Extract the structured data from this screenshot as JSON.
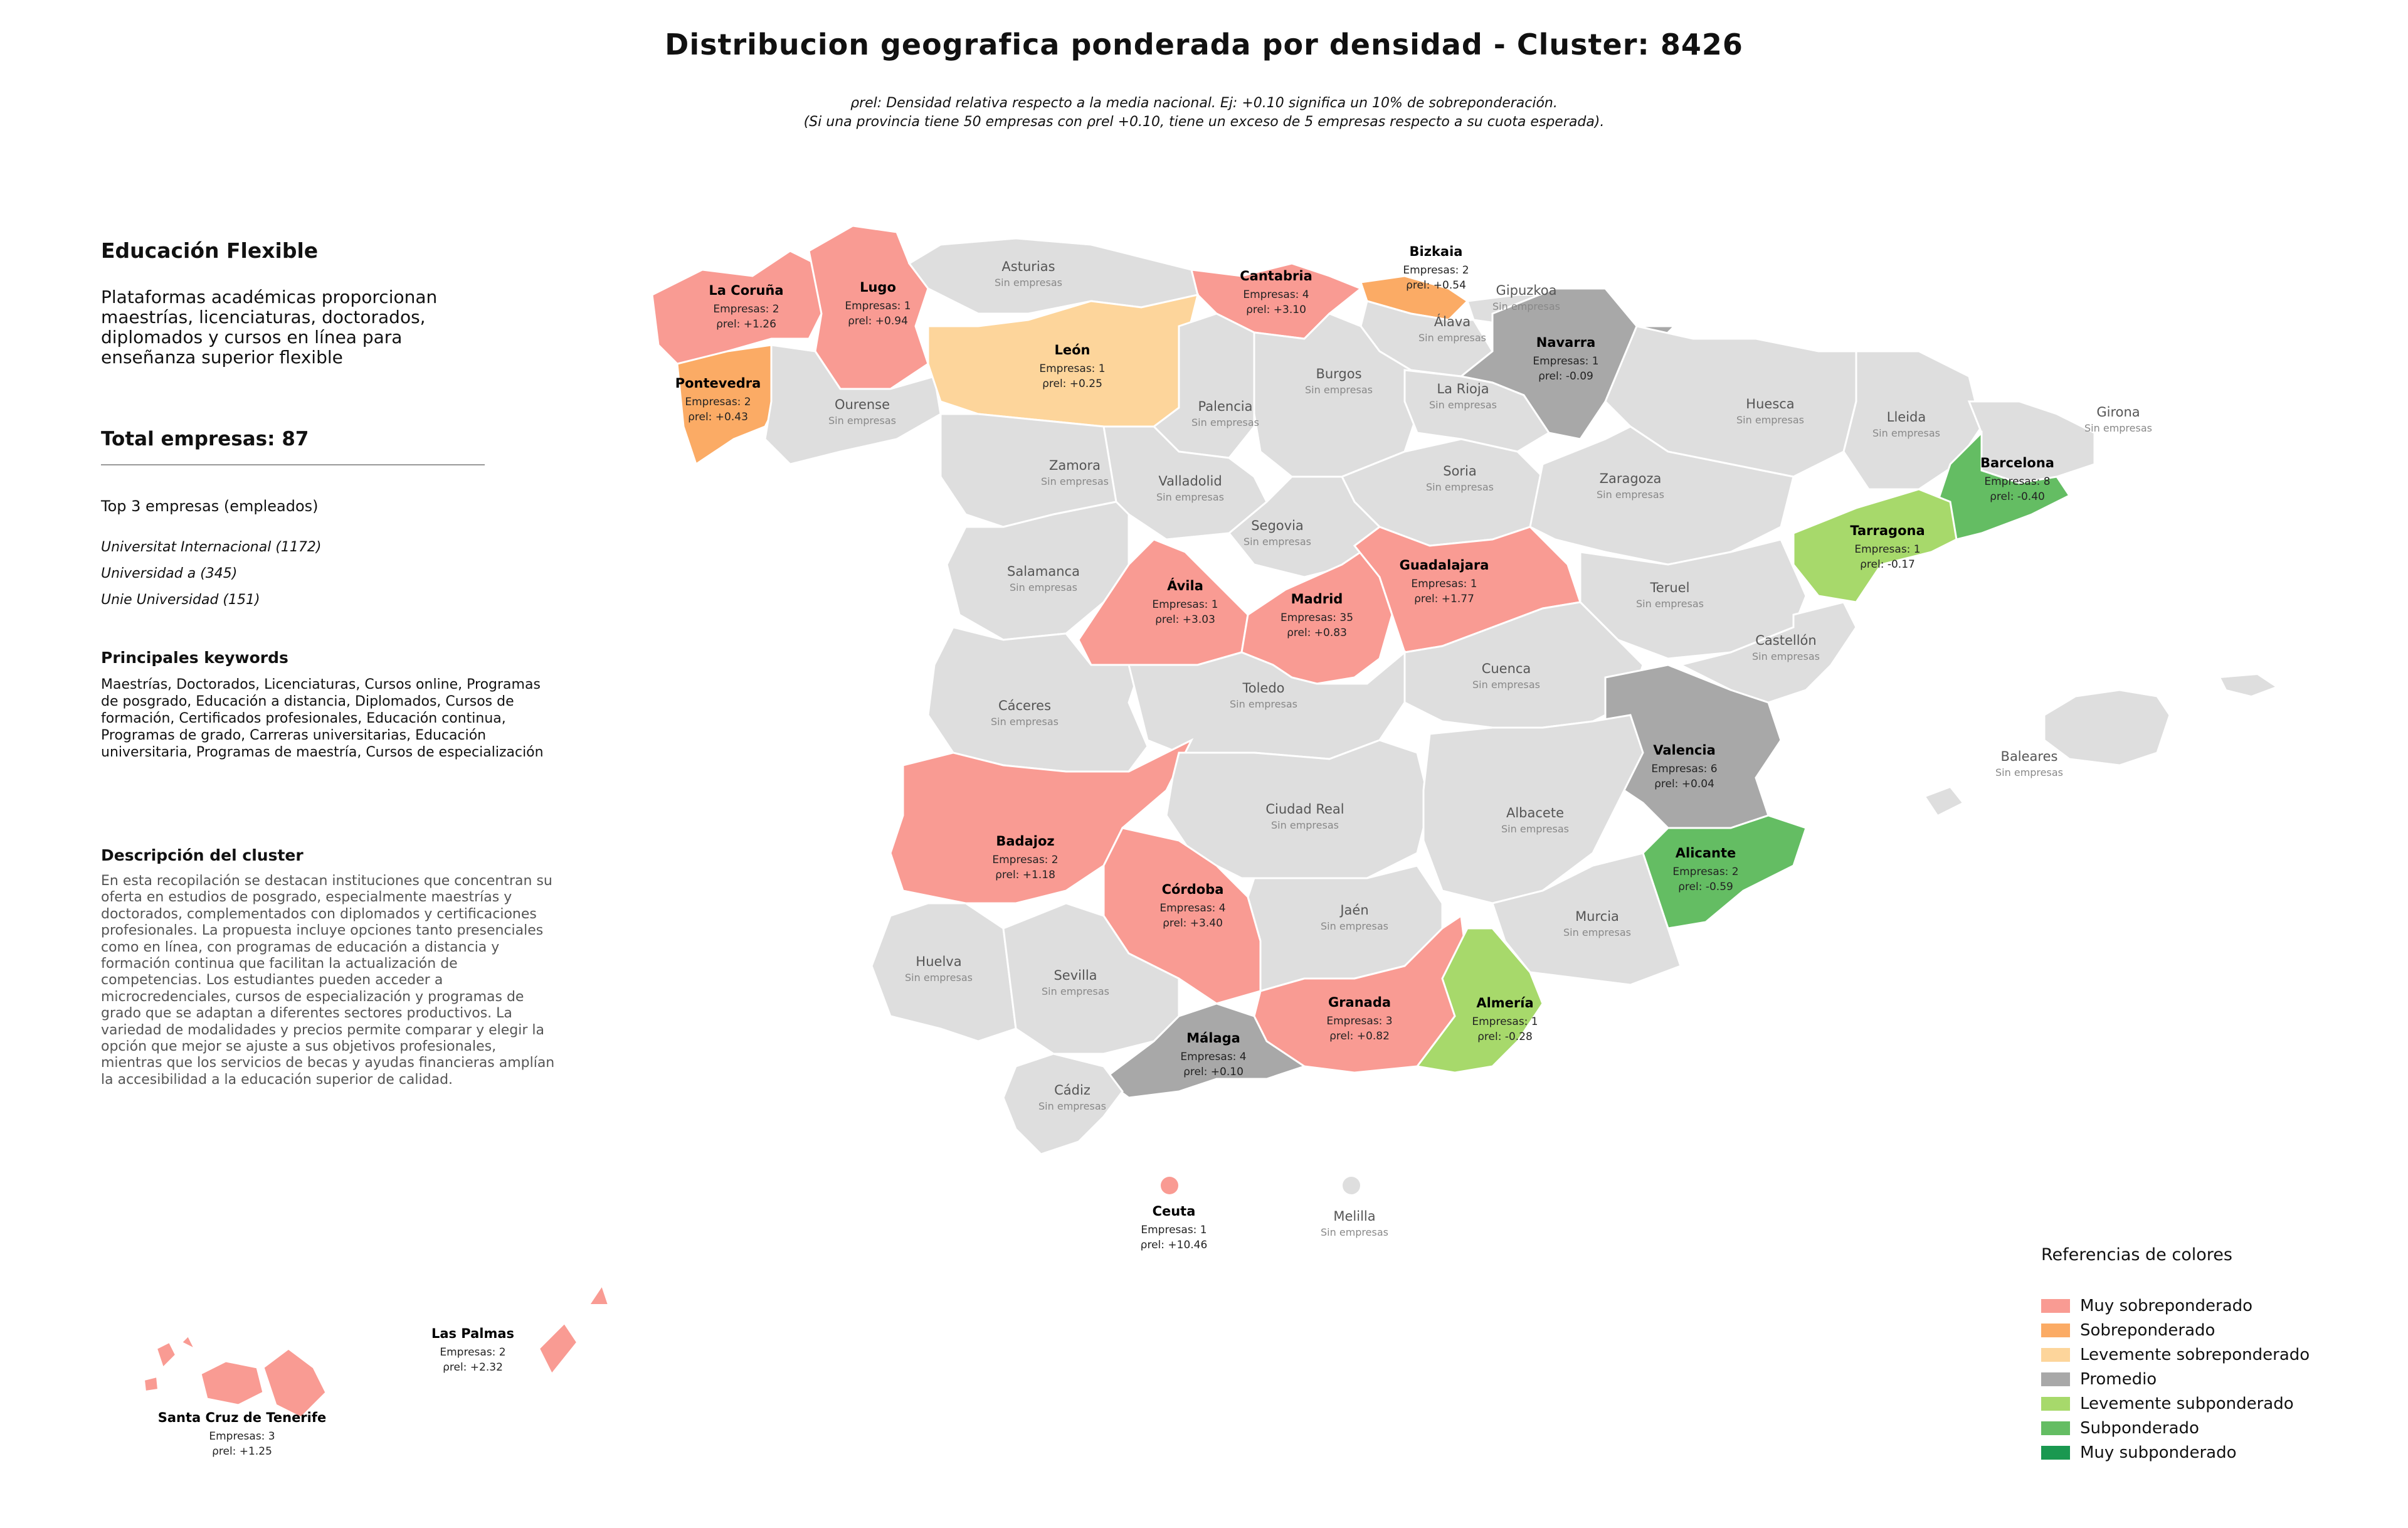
{
  "title": "Distribucion geografica ponderada por densidad - Cluster: 8426",
  "subtitle_line1": "ρrel: Densidad relativa respecto a la media nacional. Ej: +0.10 significa un 10% de sobreponderación.",
  "subtitle_line2": "(Si una provincia tiene 50 empresas con ρrel +0.10, tiene un exceso de 5 empresas respecto a su cuota esperada).",
  "panel": {
    "title": "Educación Flexible",
    "description": "Plataformas académicas proporcionan maestrías, licenciaturas, doctorados, diplomados y cursos en línea para enseñanza superior flexible",
    "total": "Total empresas: 87",
    "top3_title": "Top 3 empresas (empleados)",
    "top3": [
      "Universitat Internacional (1172)",
      "Universidad a (345)",
      "Unie Universidad (151)"
    ],
    "keywords_title": "Principales keywords",
    "keywords": "Maestrías, Doctorados, Licenciaturas, Cursos online, Programas de posgrado, Educación a distancia, Diplomados, Cursos de formación, Certificados profesionales, Educación continua, Programas de grado, Carreras universitarias, Educación universitaria, Programas de maestría, Cursos de especialización",
    "cluster_desc_title": "Descripción del cluster",
    "cluster_desc": "En esta recopilación se destacan instituciones que concentran su oferta en estudios de posgrado, especialmente maestrías y doctorados, complementados con diplomados y certificaciones profesionales. La propuesta incluye opciones tanto presenciales como en línea, con programas de educación a distancia y formación continua que facilitan la actualización de competencias. Los estudiantes pueden acceder a microcredenciales, cursos de especialización y programas de grado que se adaptan a diferentes sectores productivos. La variedad de modalidades y precios permite comparar y elegir la opción que mejor se ajuste a sus objetivos profesionales, mientras que los servicios de becas y ayudas financieras amplían la accesibilidad a la educación superior de calidad."
  },
  "no_companies_label": "Sin empresas",
  "companies_prefix": "Empresas: ",
  "rho_prefix": "ρrel: ",
  "colors": {
    "muy_sobre": "#f99b93",
    "sobre": "#fbab65",
    "leve_sobre": "#fdd59b",
    "promedio": "#a8a8a8",
    "leve_sub": "#a7d96b",
    "sub": "#64bd63",
    "muy_sub": "#1a9850",
    "none": "#dedede",
    "border": "#ffffff"
  },
  "provinces": [
    {
      "id": "la-coruna",
      "name": "La Coruña",
      "companies": 2,
      "rho": "+1.26",
      "cat": "muy_sobre"
    },
    {
      "id": "lugo",
      "name": "Lugo",
      "companies": 1,
      "rho": "+0.94",
      "cat": "muy_sobre"
    },
    {
      "id": "asturias",
      "name": "Asturias"
    },
    {
      "id": "cantabria",
      "name": "Cantabria",
      "companies": 4,
      "rho": "+3.10",
      "cat": "muy_sobre"
    },
    {
      "id": "bizkaia",
      "name": "Bizkaia",
      "companies": 2,
      "rho": "+0.54",
      "cat": "sobre"
    },
    {
      "id": "gipuzkoa",
      "name": "Gipuzkoa"
    },
    {
      "id": "alava",
      "name": "Álava"
    },
    {
      "id": "navarra",
      "name": "Navarra",
      "companies": 1,
      "rho": "-0.09",
      "cat": "promedio"
    },
    {
      "id": "pontevedra",
      "name": "Pontevedra",
      "companies": 2,
      "rho": "+0.43",
      "cat": "sobre"
    },
    {
      "id": "ourense",
      "name": "Ourense"
    },
    {
      "id": "leon",
      "name": "León",
      "companies": 1,
      "rho": "+0.25",
      "cat": "leve_sobre"
    },
    {
      "id": "palencia",
      "name": "Palencia"
    },
    {
      "id": "burgos",
      "name": "Burgos"
    },
    {
      "id": "la-rioja",
      "name": "La Rioja"
    },
    {
      "id": "huesca",
      "name": "Huesca"
    },
    {
      "id": "lleida",
      "name": "Lleida"
    },
    {
      "id": "girona",
      "name": "Girona"
    },
    {
      "id": "barcelona",
      "name": "Barcelona",
      "companies": 8,
      "rho": "-0.40",
      "cat": "sub"
    },
    {
      "id": "zamora",
      "name": "Zamora"
    },
    {
      "id": "valladolid",
      "name": "Valladolid"
    },
    {
      "id": "soria",
      "name": "Soria"
    },
    {
      "id": "zaragoza",
      "name": "Zaragoza"
    },
    {
      "id": "tarragona",
      "name": "Tarragona",
      "companies": 1,
      "rho": "-0.17",
      "cat": "leve_sub"
    },
    {
      "id": "segovia",
      "name": "Segovia"
    },
    {
      "id": "salamanca",
      "name": "Salamanca"
    },
    {
      "id": "avila",
      "name": "Ávila",
      "companies": 1,
      "rho": "+3.03",
      "cat": "muy_sobre"
    },
    {
      "id": "madrid",
      "name": "Madrid",
      "companies": 35,
      "rho": "+0.83",
      "cat": "muy_sobre"
    },
    {
      "id": "guadalajara",
      "name": "Guadalajara",
      "companies": 1,
      "rho": "+1.77",
      "cat": "muy_sobre"
    },
    {
      "id": "teruel",
      "name": "Teruel"
    },
    {
      "id": "castellon",
      "name": "Castellón"
    },
    {
      "id": "caceres",
      "name": "Cáceres"
    },
    {
      "id": "toledo",
      "name": "Toledo"
    },
    {
      "id": "cuenca",
      "name": "Cuenca"
    },
    {
      "id": "valencia",
      "name": "Valencia",
      "companies": 6,
      "rho": "+0.04",
      "cat": "promedio"
    },
    {
      "id": "badajoz",
      "name": "Badajoz",
      "companies": 2,
      "rho": "+1.18",
      "cat": "muy_sobre"
    },
    {
      "id": "ciudad-real",
      "name": "Ciudad Real"
    },
    {
      "id": "albacete",
      "name": "Albacete"
    },
    {
      "id": "alicante",
      "name": "Alicante",
      "companies": 2,
      "rho": "-0.59",
      "cat": "sub"
    },
    {
      "id": "cordoba",
      "name": "Córdoba",
      "companies": 4,
      "rho": "+3.40",
      "cat": "muy_sobre"
    },
    {
      "id": "jaen",
      "name": "Jaén"
    },
    {
      "id": "murcia",
      "name": "Murcia"
    },
    {
      "id": "huelva",
      "name": "Huelva"
    },
    {
      "id": "sevilla",
      "name": "Sevilla"
    },
    {
      "id": "granada",
      "name": "Granada",
      "companies": 3,
      "rho": "+0.82",
      "cat": "muy_sobre"
    },
    {
      "id": "almeria",
      "name": "Almería",
      "companies": 1,
      "rho": "-0.28",
      "cat": "leve_sub"
    },
    {
      "id": "malaga",
      "name": "Málaga",
      "companies": 4,
      "rho": "+0.10",
      "cat": "promedio"
    },
    {
      "id": "cadiz",
      "name": "Cádiz"
    },
    {
      "id": "baleares",
      "name": "Baleares"
    },
    {
      "id": "ceuta",
      "name": "Ceuta",
      "companies": 1,
      "rho": "+10.46",
      "cat": "muy_sobre"
    },
    {
      "id": "melilla",
      "name": "Melilla"
    },
    {
      "id": "las-palmas",
      "name": "Las Palmas",
      "companies": 2,
      "rho": "+2.32",
      "cat": "muy_sobre"
    },
    {
      "id": "santa-cruz",
      "name": "Santa Cruz de Tenerife",
      "companies": 3,
      "rho": "+1.25",
      "cat": "muy_sobre"
    }
  ],
  "legend": {
    "title": "Referencias de colores",
    "items": [
      {
        "label": "Muy sobreponderado",
        "cat": "muy_sobre"
      },
      {
        "label": "Sobreponderado",
        "cat": "sobre"
      },
      {
        "label": "Levemente sobreponderado",
        "cat": "leve_sobre"
      },
      {
        "label": "Promedio",
        "cat": "promedio"
      },
      {
        "label": "Levemente subponderado",
        "cat": "leve_sub"
      },
      {
        "label": "Subponderado",
        "cat": "sub"
      },
      {
        "label": "Muy subponderado",
        "cat": "muy_sub"
      }
    ]
  }
}
